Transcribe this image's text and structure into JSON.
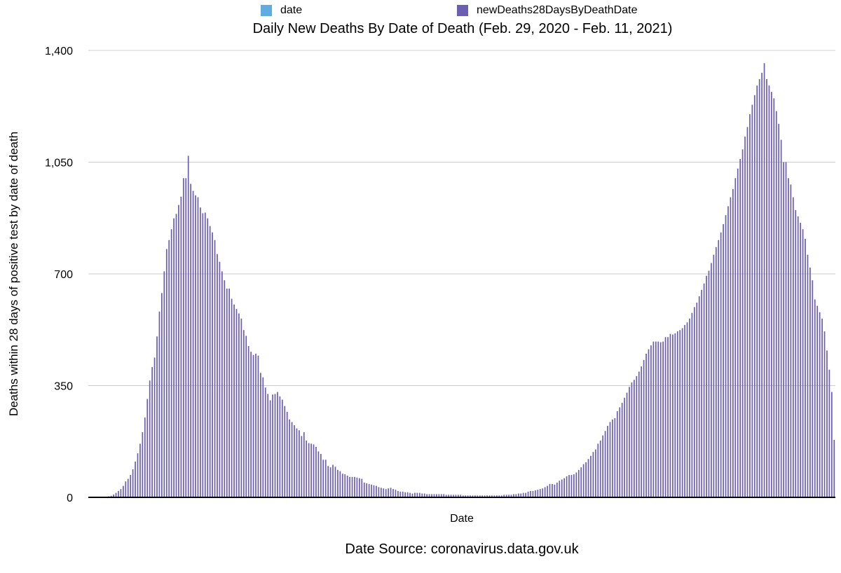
{
  "colors": {
    "series_date": "#5dade2",
    "series_deaths": "#6a5fb0",
    "grid": "#cccccc",
    "axis": "#000000"
  },
  "chart_data": {
    "type": "bar",
    "title": "Daily New Deaths By Date of Death (Feb. 29, 2020 - Feb. 11, 2021)",
    "xlabel": "Date",
    "ylabel": "Deaths within 28 days of positive test by date of death",
    "source": "Date Source: coronavirus.data.gov.uk",
    "ylim": [
      0,
      1400
    ],
    "yticks": [
      0,
      350,
      700,
      1050,
      1400
    ],
    "ytick_labels": [
      "0",
      "350",
      "700",
      "1,050",
      "1,400"
    ],
    "grid": true,
    "legend_position": "top",
    "legend": [
      "date",
      "newDeaths28DaysByDeathDate"
    ],
    "series": [
      {
        "name": "newDeaths28DaysByDeathDate",
        "values": [
          0,
          0,
          0,
          0,
          0,
          1,
          1,
          2,
          3,
          5,
          9,
          14,
          20,
          26,
          36,
          50,
          58,
          70,
          88,
          112,
          138,
          168,
          204,
          250,
          308,
          366,
          408,
          438,
          504,
          582,
          640,
          708,
          778,
          806,
          840,
          874,
          888,
          916,
          942,
          1000,
          1000,
          1070,
          982,
          960,
          946,
          940,
          908,
          890,
          892,
          874,
          850,
          830,
          806,
          762,
          738,
          708,
          680,
          654,
          654,
          622,
          604,
          590,
          576,
          560,
          524,
          506,
          474,
          456,
          446,
          450,
          444,
          390,
          376,
          344,
          324,
          304,
          322,
          324,
          330,
          316,
          306,
          286,
          268,
          244,
          236,
          226,
          216,
          210,
          192,
          204,
          178,
          170,
          168,
          166,
          158,
          144,
          136,
          118,
          118,
          98,
          94,
          102,
          96,
          86,
          82,
          74,
          72,
          68,
          64,
          64,
          64,
          62,
          60,
          58,
          46,
          44,
          42,
          40,
          38,
          36,
          32,
          30,
          28,
          26,
          28,
          30,
          26,
          24,
          20,
          18,
          18,
          16,
          16,
          14,
          12,
          14,
          14,
          14,
          12,
          12,
          10,
          10,
          10,
          10,
          10,
          10,
          10,
          10,
          8,
          8,
          8,
          8,
          8,
          8,
          8,
          6,
          6,
          6,
          6,
          6,
          6,
          6,
          6,
          6,
          6,
          6,
          6,
          6,
          6,
          6,
          6,
          6,
          8,
          8,
          8,
          8,
          10,
          10,
          12,
          12,
          14,
          14,
          18,
          20,
          20,
          22,
          24,
          26,
          28,
          32,
          36,
          42,
          42,
          40,
          46,
          52,
          56,
          60,
          66,
          70,
          70,
          72,
          78,
          86,
          94,
          104,
          110,
          120,
          130,
          142,
          150,
          168,
          178,
          194,
          208,
          224,
          236,
          244,
          248,
          270,
          282,
          296,
          312,
          328,
          346,
          360,
          368,
          380,
          394,
          410,
          430,
          450,
          464,
          476,
          488,
          488,
          488,
          486,
          488,
          502,
          502,
          512,
          510,
          514,
          520,
          524,
          530,
          540,
          548,
          560,
          578,
          596,
          610,
          630,
          650,
          670,
          694,
          710,
          734,
          760,
          784,
          806,
          830,
          856,
          884,
          912,
          940,
          966,
          1000,
          1030,
          1060,
          1090,
          1130,
          1160,
          1200,
          1230,
          1260,
          1290,
          1310,
          1330,
          1360,
          1310,
          1290,
          1270,
          1250,
          1210,
          1170,
          1120,
          1050,
          1050,
          1000,
          980,
          940,
          900,
          880,
          860,
          840,
          810,
          760,
          720,
          680,
          620,
          600,
          580,
          560,
          520,
          460,
          400,
          330,
          180
        ],
        "color": "#6a5fb0"
      }
    ]
  }
}
